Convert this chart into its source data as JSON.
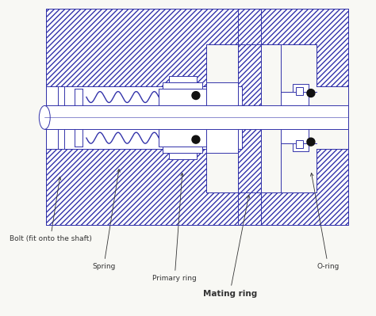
{
  "bg_color": "#f8f8f4",
  "line_color": "#3333aa",
  "dot_color": "#111111",
  "label_color": "#333333",
  "labels": {
    "bolt": "Bolt (fit onto the shaft)",
    "spring": "Spring",
    "primary_ring": "Primary ring",
    "mating_ring": "Mating ring",
    "o_ring": "O-ring"
  },
  "font_size_label": 6.5,
  "font_size_mating": 7.5
}
